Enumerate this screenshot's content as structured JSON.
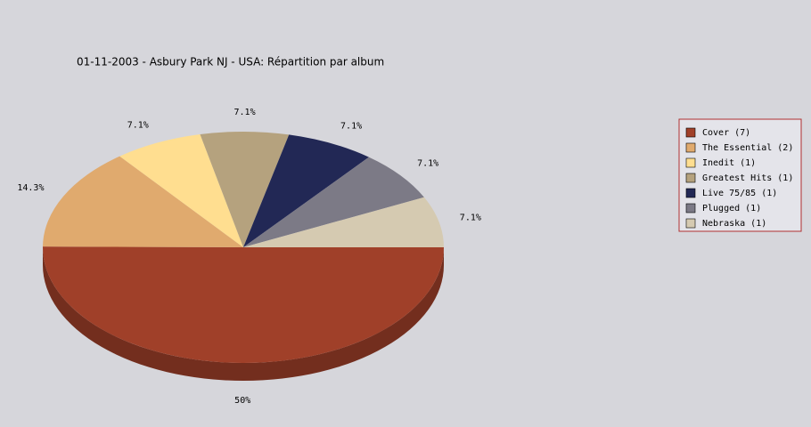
{
  "chart_data": {
    "type": "pie3d",
    "title": "01-11-2003 - Asbury Park NJ - USA:  Répartition par album",
    "categories": [
      "Cover (7)",
      "The Essential (2)",
      "Inedit (1)",
      "Greatest Hits (1)",
      "Live 75/85 (1)",
      "Plugged (1)",
      "Nebraska (1)"
    ],
    "values": [
      50,
      14.3,
      7.1,
      7.1,
      7.1,
      7.1,
      7.1
    ],
    "value_labels": [
      "50%",
      "14.3%",
      "7.1%",
      "7.1%",
      "7.1%",
      "7.1%",
      "7.1%"
    ],
    "colors": [
      "#a04029",
      "#e0aa6e",
      "#ffde90",
      "#b5a27e",
      "#222855",
      "#7c7a86",
      "#d5cab1"
    ],
    "legend": "right"
  }
}
